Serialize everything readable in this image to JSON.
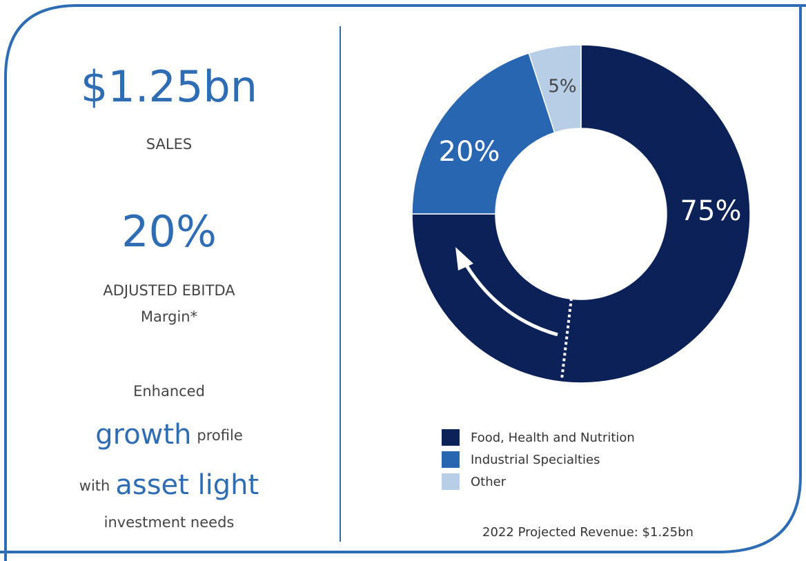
{
  "panel": {
    "headline_value": "$1.25bn",
    "headline_label": "SALES",
    "margin_value": "20%",
    "margin_label_1": "ADJUSTED EBITDA",
    "margin_label_2": "Margin*",
    "text_1": "Enhanced",
    "text_2a": "growth",
    "text_2b": "profile",
    "text_3a": "with",
    "text_3b": "asset light",
    "text_4": "investment needs"
  },
  "chart_data": {
    "type": "donut",
    "categories": [
      "Food, Health and Nutrition",
      "Industrial Specialties",
      "Other"
    ],
    "values": [
      75,
      20,
      5
    ],
    "value_labels": [
      "75%",
      "20%",
      "5%"
    ],
    "colors": [
      "#0d2159",
      "#2866b1",
      "#b8cde6"
    ],
    "footnote": "2022 Projected Revenue: $1.25bn"
  }
}
